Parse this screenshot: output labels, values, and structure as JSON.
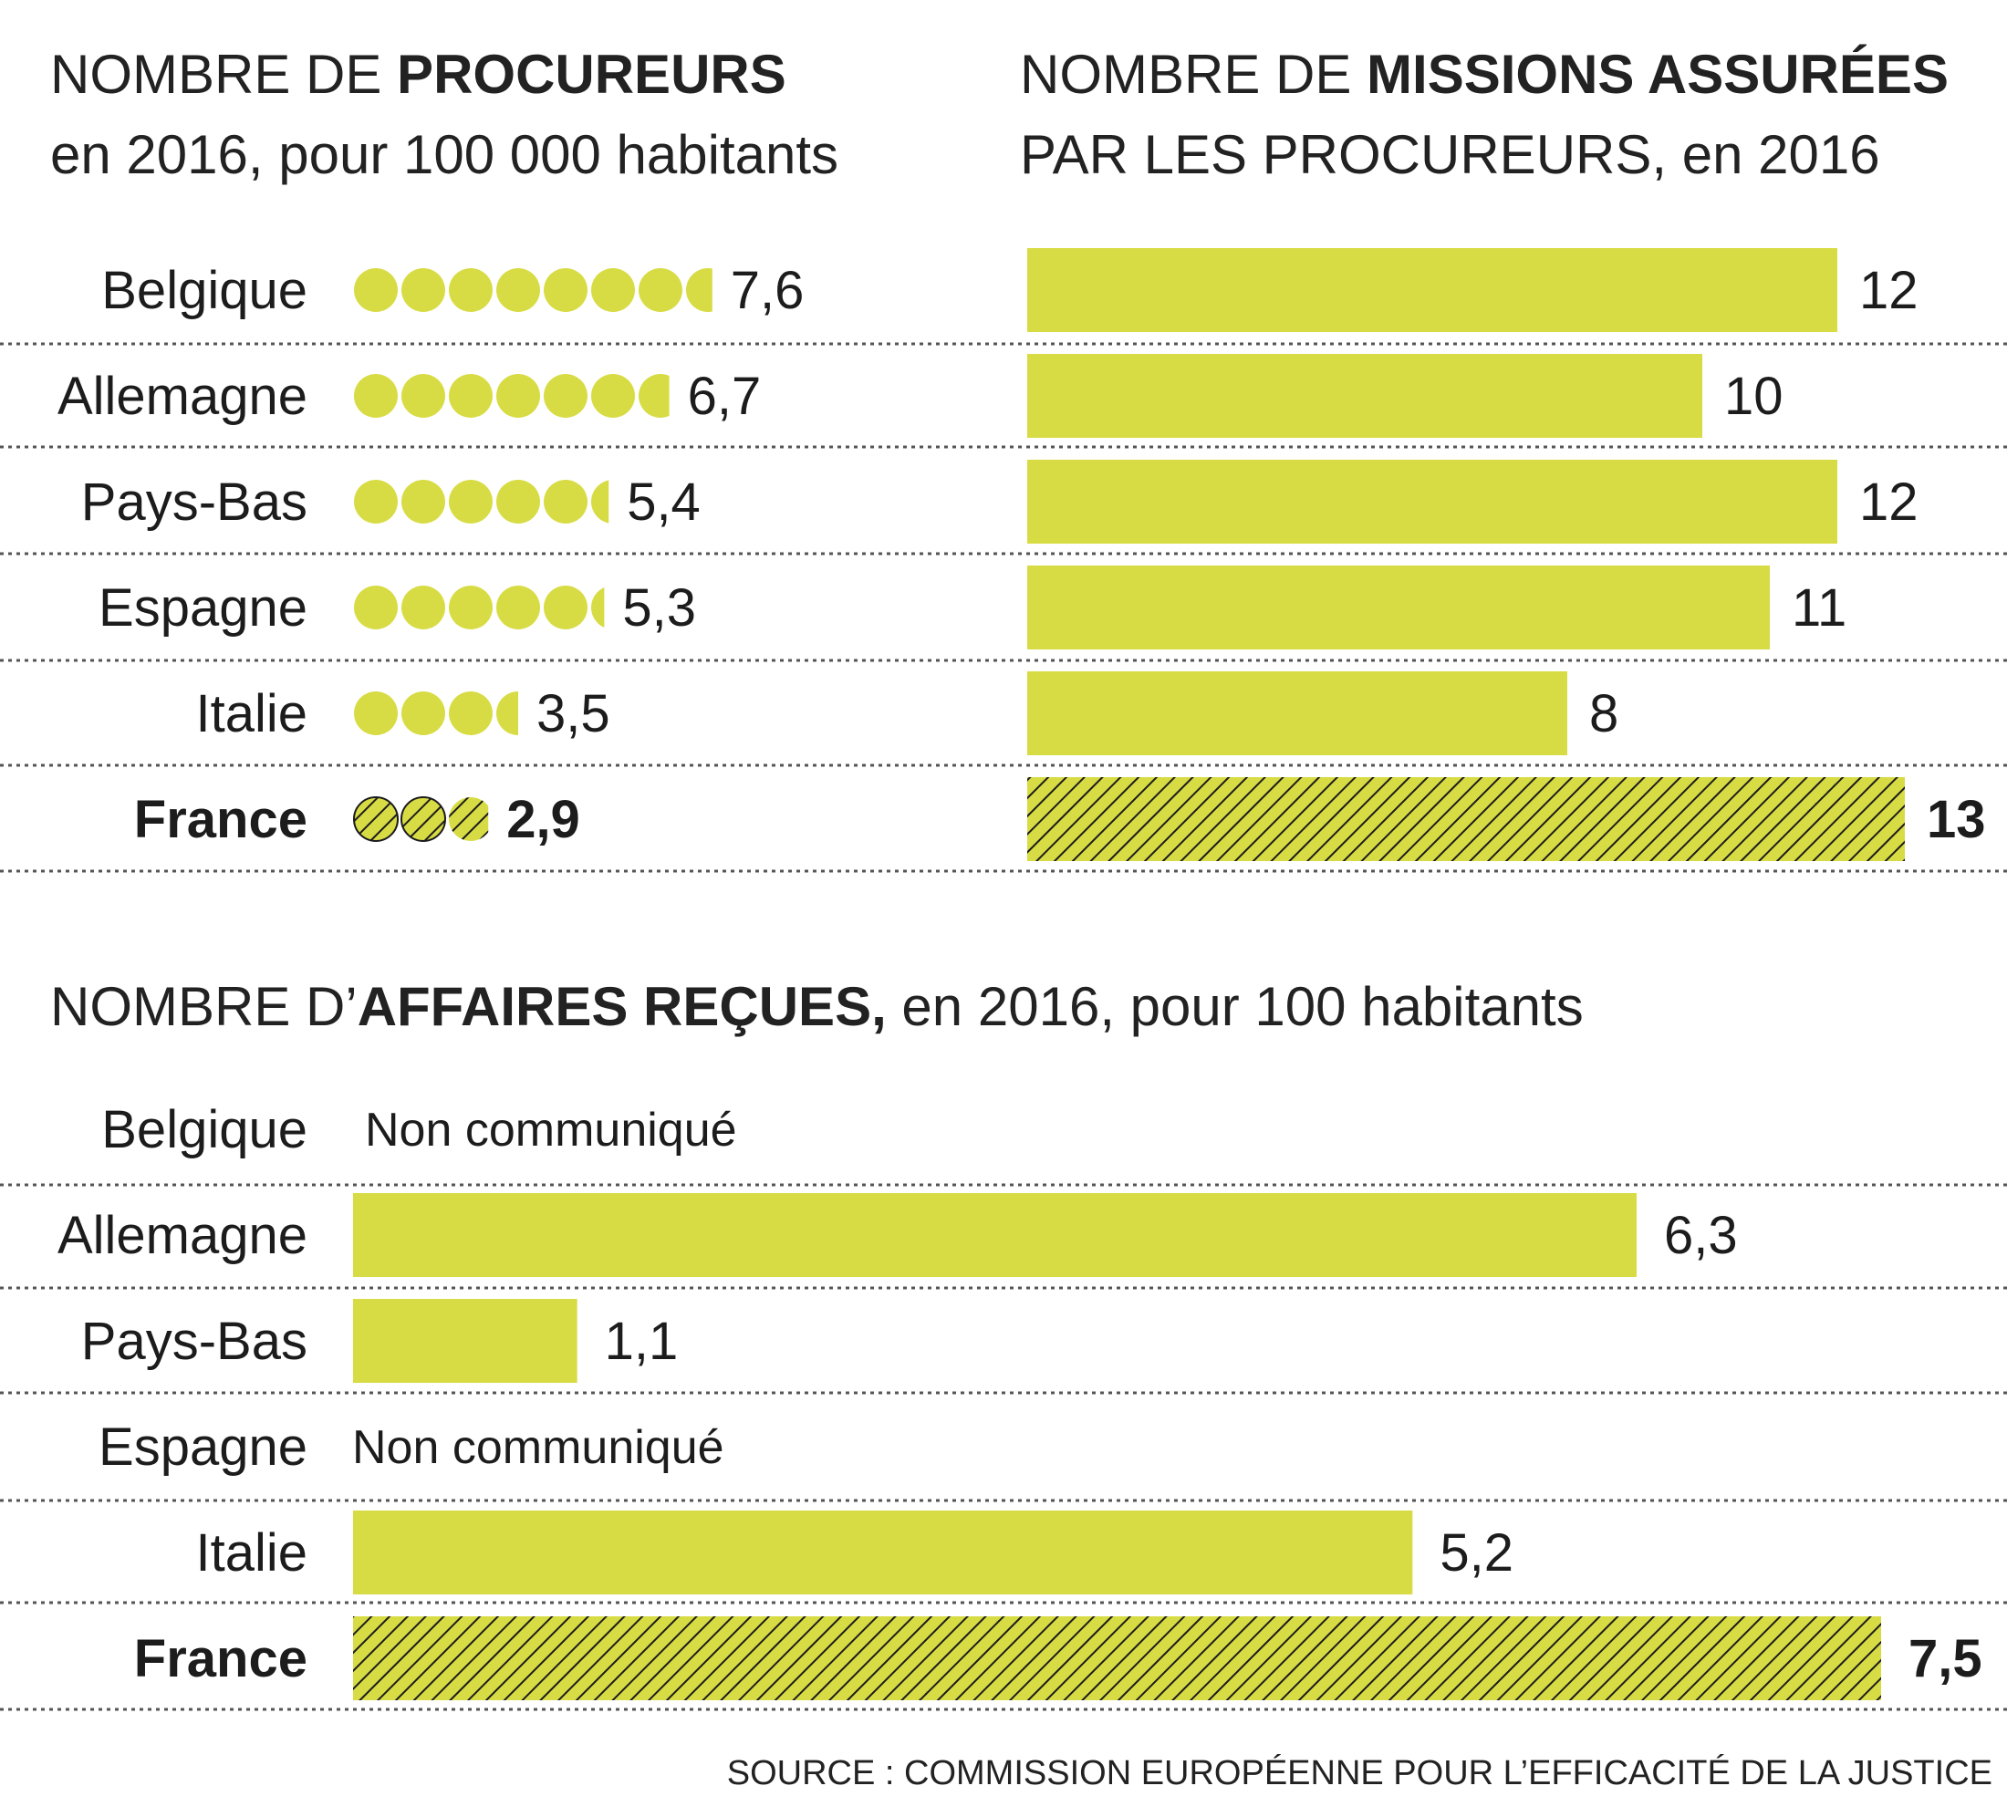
{
  "colors": {
    "bar": "#d8dc44",
    "hatch": "#1c1c1c",
    "divider": "#555555",
    "text": "#1c1c1c"
  },
  "titles": {
    "procureurs": {
      "pre": "NOMBRE DE ",
      "bold": "PROCUREURS",
      "line2": "en 2016, pour 100 000 habitants"
    },
    "missions": {
      "pre": "NOMBRE DE ",
      "bold": "MISSIONS ASSURÉES",
      "line2": "PAR LES PROCUREURS, en 2016"
    },
    "affaires": {
      "pre": "NOMBRE D’",
      "bold": "AFFAIRES REÇUES,",
      "post": " en 2016, pour 100 habitants"
    }
  },
  "source": "SOURCE : COMMISSION EUROPÉENNE POUR L’EFFICACITÉ DE LA JUSTICE",
  "chart_data": [
    {
      "type": "bar",
      "title": "NOMBRE DE PROCUREURS en 2016, pour 100 000 habitants",
      "mark": "dots",
      "categories": [
        "Belgique",
        "Allemagne",
        "Pays-Bas",
        "Espagne",
        "Italie",
        "France"
      ],
      "values": [
        7.6,
        6.7,
        5.4,
        5.3,
        3.5,
        2.9
      ],
      "labels": [
        "7,6",
        "6,7",
        "5,4",
        "5,3",
        "3,5",
        "2,9"
      ],
      "highlight": "France"
    },
    {
      "type": "bar",
      "title": "NOMBRE DE MISSIONS ASSURÉES PAR LES PROCUREURS, en 2016",
      "categories": [
        "Belgique",
        "Allemagne",
        "Pays-Bas",
        "Espagne",
        "Italie",
        "France"
      ],
      "values": [
        12,
        10,
        12,
        11,
        8,
        13
      ],
      "labels": [
        "12",
        "10",
        "12",
        "11",
        "8",
        "13"
      ],
      "highlight": "France"
    },
    {
      "type": "bar",
      "title": "NOMBRE D’AFFAIRES REÇUES, en 2016, pour 100 habitants",
      "categories": [
        "Belgique",
        "Allemagne",
        "Pays-Bas",
        "Espagne",
        "Italie",
        "France"
      ],
      "values": [
        null,
        6.3,
        1.1,
        null,
        5.2,
        7.5
      ],
      "labels": [
        "Non communiqué",
        "6,3",
        "1,1",
        "Non communiqué",
        "5,2",
        "7,5"
      ],
      "highlight": "France"
    }
  ]
}
